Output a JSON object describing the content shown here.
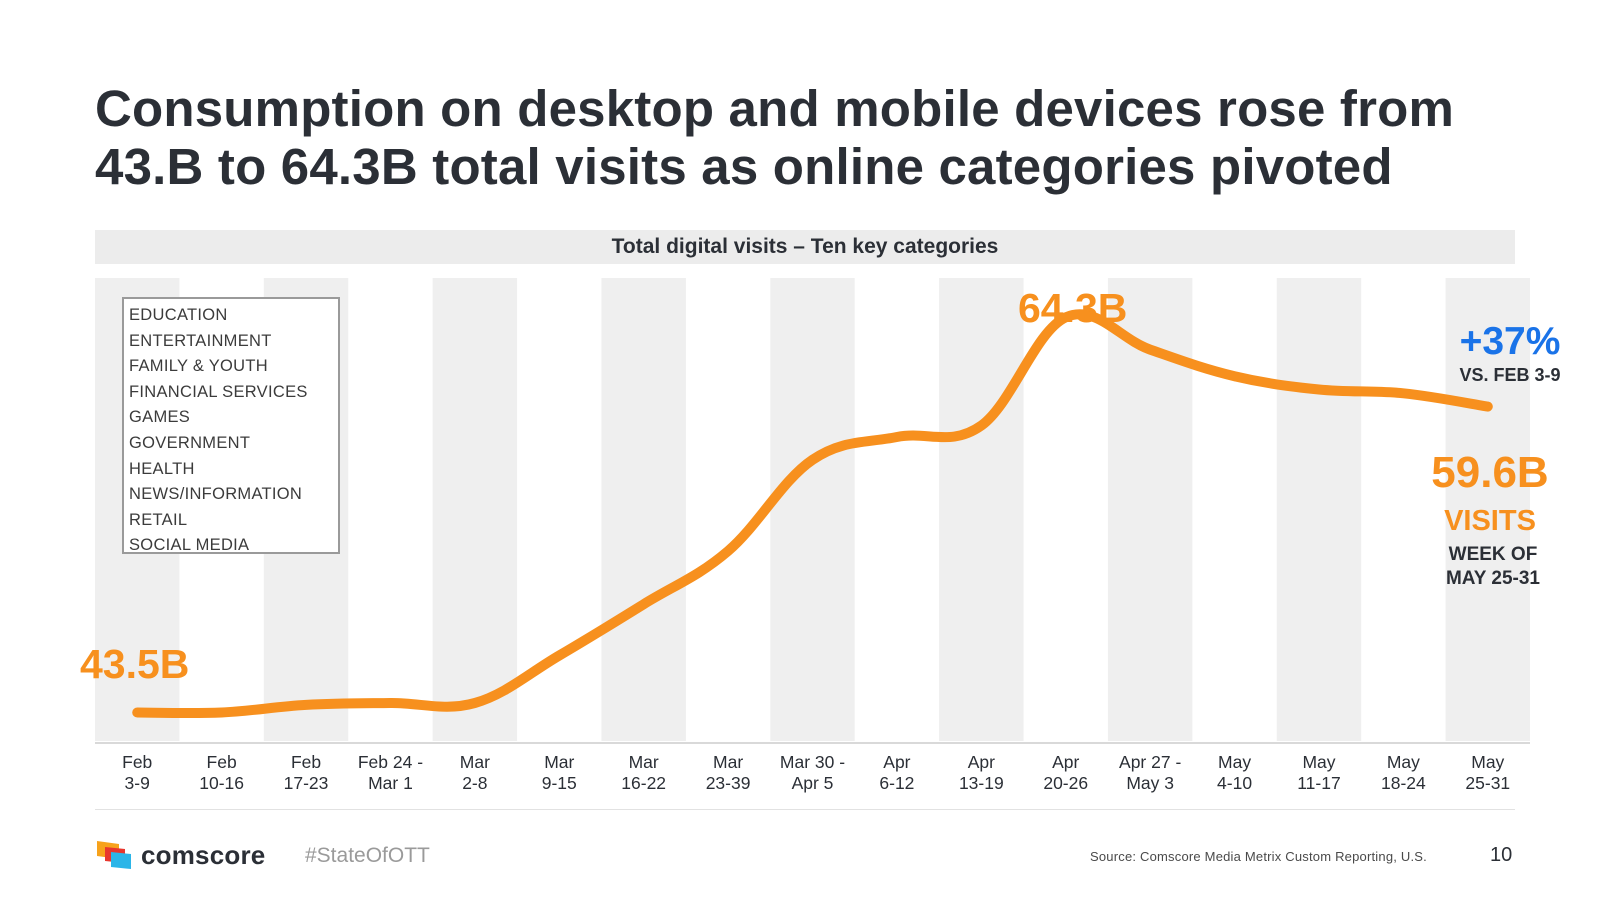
{
  "title": "Consumption on desktop and mobile devices rose from 43.B to 64.3B total visits as online categories pivoted",
  "chart_data": {
    "type": "line",
    "title": "Total digital visits – Ten key categories",
    "unit": "billion visits",
    "categories": [
      [
        "Feb",
        "3-9"
      ],
      [
        "Feb",
        "10-16"
      ],
      [
        "Feb",
        "17-23"
      ],
      [
        "Feb 24 -",
        "Mar 1"
      ],
      [
        "Mar",
        "2-8"
      ],
      [
        "Mar",
        "9-15"
      ],
      [
        "Mar",
        "16-22"
      ],
      [
        "Mar",
        "23-39"
      ],
      [
        "Mar 30 -",
        "Apr 5"
      ],
      [
        "Apr",
        "6-12"
      ],
      [
        "Apr",
        "13-19"
      ],
      [
        "Apr",
        "20-26"
      ],
      [
        "Apr 27 -",
        "May 3"
      ],
      [
        "May",
        "4-10"
      ],
      [
        "May",
        "11-17"
      ],
      [
        "May",
        "18-24"
      ],
      [
        "May",
        "25-31"
      ]
    ],
    "values": [
      43.5,
      43.5,
      43.9,
      44.0,
      44.0,
      46.5,
      49.2,
      52.0,
      56.8,
      58.0,
      58.6,
      64.3,
      62.6,
      61.2,
      60.5,
      60.3,
      59.6
    ],
    "ylim": [
      42,
      66
    ],
    "series_color": "#f7901e",
    "legend_items": [
      "EDUCATION",
      "ENTERTAINMENT",
      "FAMILY & YOUTH",
      "FINANCIAL SERVICES",
      "GAMES",
      "GOVERNMENT",
      "HEALTH",
      "NEWS/INFORMATION",
      "RETAIL",
      "SOCIAL MEDIA"
    ],
    "annotations": {
      "start_label": "43.5B",
      "peak_label": "64.3B",
      "end_label": "59.6B",
      "change_label": "+37%",
      "change_sub": "VS. FEB 3-9",
      "visits_label": "VISITS",
      "week_line1": "WEEK OF",
      "week_line2": "MAY 25-31"
    }
  },
  "colors": {
    "orange": "#f7901e",
    "blue": "#1a73e8",
    "band": "#efefef",
    "text": "#2b2f36"
  },
  "footer": {
    "brand": "comscore",
    "hashtag": "#StateOfOTT",
    "source": "Source: Comscore Media Metrix Custom Reporting, U.S.",
    "page": "10"
  }
}
